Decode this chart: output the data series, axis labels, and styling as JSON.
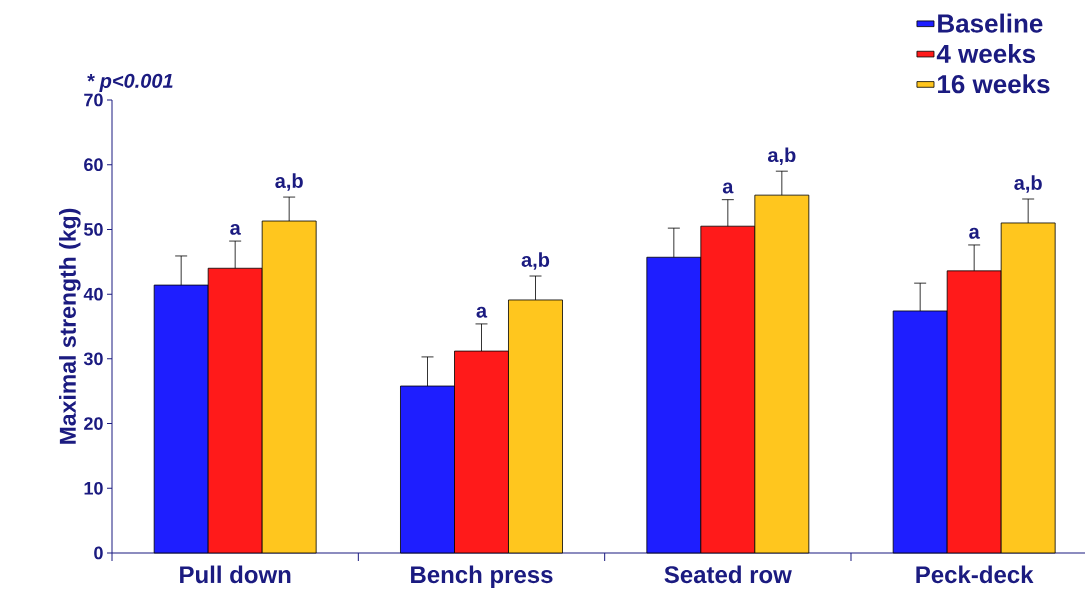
{
  "chart_data": {
    "type": "bar",
    "ylabel": "Maximal strength (kg)",
    "categories": [
      "Pull down",
      "Bench press",
      "Seated row",
      "Peck-deck"
    ],
    "series": [
      {
        "name": "Baseline",
        "color": "#1e1eff",
        "values": [
          41.4,
          25.8,
          45.7,
          37.4
        ],
        "errors": [
          4.5,
          4.5,
          4.5,
          4.3
        ]
      },
      {
        "name": "4 weeks",
        "color": "#ff1a1a",
        "values": [
          44.0,
          31.2,
          50.5,
          43.6
        ],
        "errors": [
          4.2,
          4.2,
          4.1,
          4.0
        ],
        "value_labels": [
          "a",
          "a",
          "a",
          "a"
        ]
      },
      {
        "name": "16 weeks",
        "color": "#ffc61e",
        "values": [
          51.3,
          39.1,
          55.3,
          51.0
        ],
        "errors": [
          3.7,
          3.7,
          3.7,
          3.7
        ],
        "value_labels": [
          "a,b",
          "a,b",
          "a,b",
          "a,b"
        ]
      }
    ],
    "ylim": [
      0,
      70
    ],
    "yticks": [
      0,
      10,
      20,
      30,
      40,
      50,
      60,
      70
    ],
    "legend": "top right",
    "annotations": [
      "* p<0.001"
    ]
  }
}
